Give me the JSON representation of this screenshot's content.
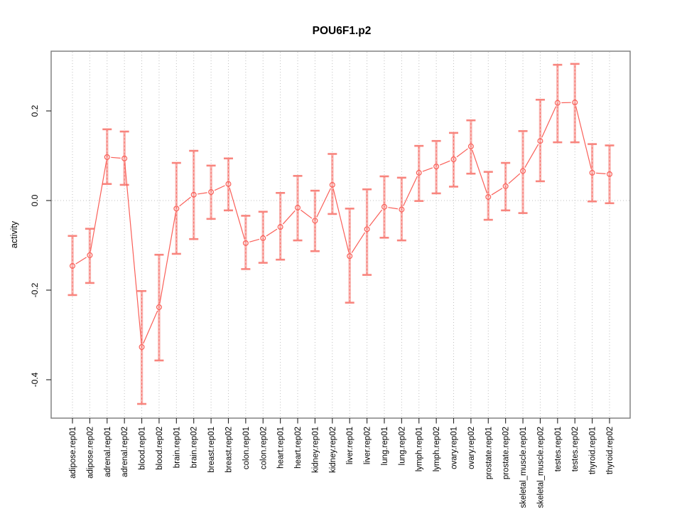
{
  "chart_data": {
    "type": "line",
    "title": "POU6F1.p2",
    "ylabel": "activity",
    "xlabel": "",
    "marker": "open-circle",
    "error_bars": true,
    "legend": null,
    "grid": {
      "vertical": "dotted-per-category",
      "horizontal": "dotted-zero-line"
    },
    "ylim": [
      -0.486,
      0.333
    ],
    "yticks": [
      0.2,
      0.0,
      -0.2,
      -0.4
    ],
    "ytick_labels": [
      "0.2",
      "0.0",
      "-0.2",
      "-0.4"
    ],
    "categories": [
      "adipose.rep01",
      "adipose.rep02",
      "adrenal.rep01",
      "adrenal.rep02",
      "blood.rep01",
      "blood.rep02",
      "brain.rep01",
      "brain.rep02",
      "breast.rep01",
      "breast.rep02",
      "colon.rep01",
      "colon.rep02",
      "heart.rep01",
      "heart.rep02",
      "kidney.rep01",
      "kidney.rep02",
      "liver.rep01",
      "liver.rep02",
      "lung.rep01",
      "lung.rep02",
      "lymph.rep01",
      "lymph.rep02",
      "ovary.rep01",
      "ovary.rep02",
      "prostate.rep01",
      "prostate.rep02",
      "skeletal_muscle.rep01",
      "skeletal_muscle.rep02",
      "testes.rep01",
      "testes.rep02",
      "thyroid.rep01",
      "thyroid.rep02"
    ],
    "series": [
      {
        "name": "activity",
        "values": [
          -0.146,
          -0.122,
          0.097,
          0.094,
          -0.327,
          -0.238,
          -0.018,
          0.013,
          0.019,
          0.037,
          -0.095,
          -0.084,
          -0.059,
          -0.016,
          -0.045,
          0.035,
          -0.124,
          -0.064,
          -0.014,
          -0.02,
          0.062,
          0.076,
          0.092,
          0.121,
          0.008,
          0.032,
          0.066,
          0.133,
          0.218,
          0.219,
          0.062,
          0.059
        ],
        "ci_low": [
          -0.211,
          -0.184,
          0.037,
          0.035,
          -0.454,
          -0.357,
          -0.119,
          -0.086,
          -0.041,
          -0.022,
          -0.153,
          -0.139,
          -0.132,
          -0.089,
          -0.113,
          -0.03,
          -0.228,
          -0.166,
          -0.083,
          -0.089,
          -0.001,
          0.016,
          0.031,
          0.06,
          -0.043,
          -0.022,
          -0.028,
          0.043,
          0.13,
          0.13,
          -0.002,
          -0.006
        ],
        "ci_high": [
          -0.079,
          -0.063,
          0.159,
          0.154,
          -0.202,
          -0.121,
          0.084,
          0.111,
          0.078,
          0.094,
          -0.034,
          -0.025,
          0.017,
          0.055,
          0.022,
          0.104,
          -0.018,
          0.025,
          0.054,
          0.051,
          0.122,
          0.133,
          0.151,
          0.179,
          0.064,
          0.084,
          0.155,
          0.225,
          0.303,
          0.305,
          0.126,
          0.123
        ]
      }
    ],
    "colors": {
      "point": "#fa5f58",
      "band": "#f8b4b0",
      "cap": "#f8857e",
      "grid": "#bfbfbf",
      "frame": "#7b7b7b",
      "tick": "#222222",
      "background": "#ffffff"
    }
  }
}
